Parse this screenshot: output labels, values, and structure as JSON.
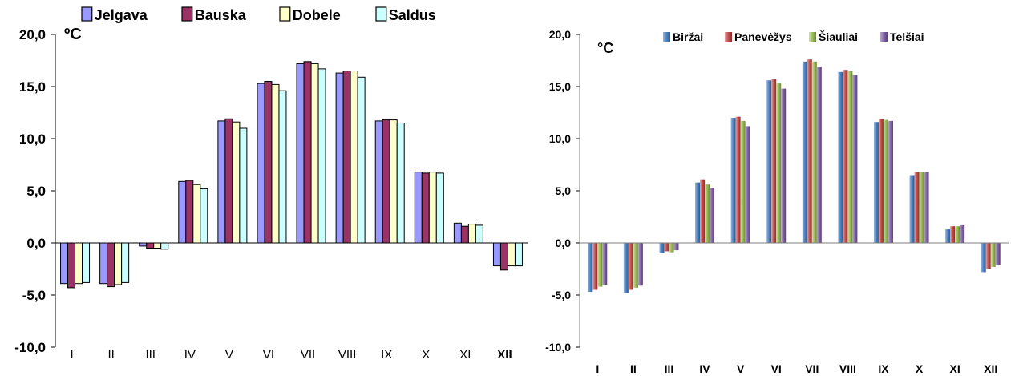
{
  "chart_data": [
    {
      "type": "bar",
      "unit_label": "ºC",
      "categories": [
        "I",
        "II",
        "III",
        "IV",
        "V",
        "VI",
        "VII",
        "VIII",
        "IX",
        "X",
        "XI",
        "XII"
      ],
      "ylim": [
        -10,
        20
      ],
      "yticks": [
        "-10,0",
        "-5,0",
        "0,0",
        "5,0",
        "10,0",
        "15,0",
        "20,0"
      ],
      "legend_position": "top",
      "series": [
        {
          "name": "Jelgava",
          "color": "#9999ff",
          "values": [
            -3.9,
            -3.9,
            -0.3,
            5.9,
            11.7,
            15.3,
            17.2,
            16.3,
            11.7,
            6.8,
            1.9,
            -2.2
          ]
        },
        {
          "name": "Bauska",
          "color": "#993366",
          "values": [
            -4.3,
            -4.2,
            -0.5,
            6.0,
            11.9,
            15.5,
            17.4,
            16.5,
            11.8,
            6.7,
            1.6,
            -2.6
          ]
        },
        {
          "name": "Dobele",
          "color": "#ffffcc",
          "values": [
            -3.9,
            -4.0,
            -0.5,
            5.6,
            11.6,
            15.2,
            17.2,
            16.5,
            11.8,
            6.8,
            1.8,
            -2.2
          ]
        },
        {
          "name": "Saldus",
          "color": "#ccffff",
          "values": [
            -3.8,
            -3.8,
            -0.6,
            5.2,
            11.0,
            14.6,
            16.7,
            15.9,
            11.5,
            6.7,
            1.7,
            -2.2
          ]
        }
      ]
    },
    {
      "type": "bar",
      "unit_label": "°C",
      "categories": [
        "I",
        "II",
        "III",
        "IV",
        "V",
        "VI",
        "VII",
        "VIII",
        "IX",
        "X",
        "XI",
        "XII"
      ],
      "ylim": [
        -10,
        20
      ],
      "yticks": [
        "-10,0",
        "-5,0",
        "0,0",
        "5,0",
        "10,0",
        "15,0",
        "20,0"
      ],
      "legend_position": "top",
      "series": [
        {
          "name": "Biržai",
          "color": "#4f81bd",
          "values": [
            -4.7,
            -4.8,
            -1.0,
            5.8,
            12.0,
            15.6,
            17.4,
            16.4,
            11.6,
            6.5,
            1.3,
            -2.8
          ]
        },
        {
          "name": "Panevėžys",
          "color": "#c0504d",
          "values": [
            -4.5,
            -4.5,
            -0.8,
            6.1,
            12.1,
            15.7,
            17.6,
            16.6,
            11.9,
            6.8,
            1.6,
            -2.5
          ]
        },
        {
          "name": "Šiauliai",
          "color": "#9bbb59",
          "values": [
            -4.2,
            -4.3,
            -0.9,
            5.6,
            11.7,
            15.3,
            17.4,
            16.5,
            11.8,
            6.8,
            1.6,
            -2.3
          ]
        },
        {
          "name": "Telšiai",
          "color": "#8064a2",
          "values": [
            -4.0,
            -4.1,
            -0.7,
            5.3,
            11.2,
            14.8,
            16.9,
            16.1,
            11.7,
            6.8,
            1.7,
            -2.1
          ]
        }
      ]
    }
  ]
}
